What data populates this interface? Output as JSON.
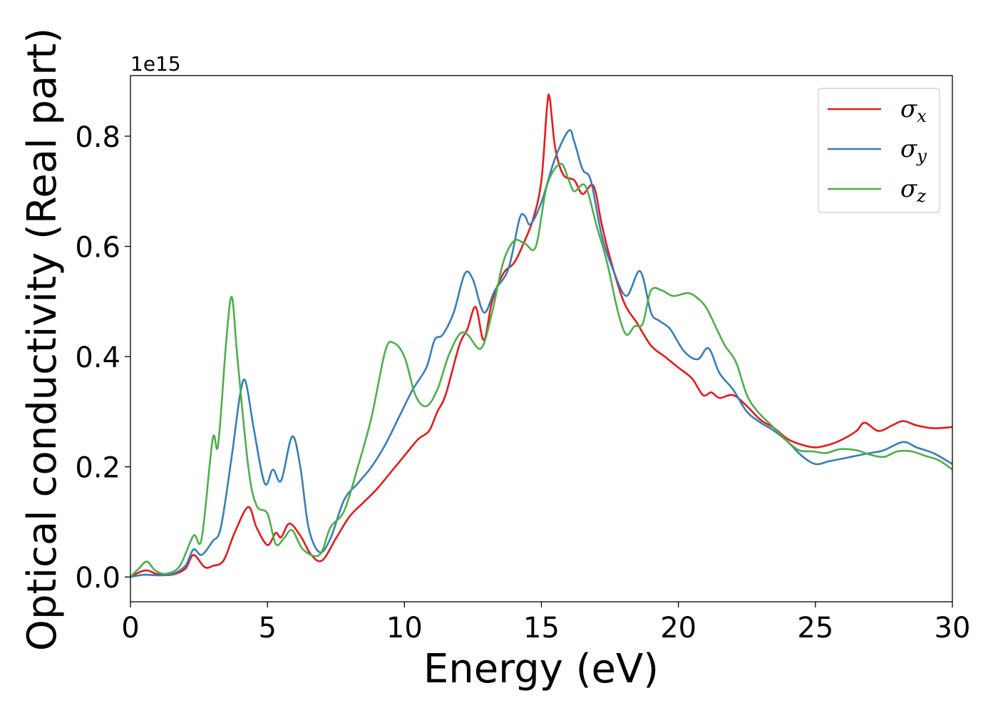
{
  "chart_data": {
    "type": "line",
    "xlabel": "Energy (eV)",
    "ylabel": "Optical conductivity (Real part)",
    "y_offset_label": "1e15",
    "y_scale": 1000000000000000.0,
    "xlim": [
      0,
      30
    ],
    "ylim": [
      -0.045,
      0.91
    ],
    "x_ticks": [
      0,
      5,
      10,
      15,
      20,
      25,
      30
    ],
    "x_tick_labels": [
      "0",
      "5",
      "10",
      "15",
      "20",
      "25",
      "30"
    ],
    "y_ticks": [
      0.0,
      0.2,
      0.4,
      0.6,
      0.8
    ],
    "y_tick_labels": [
      "0.0",
      "0.2",
      "0.4",
      "0.6",
      "0.8"
    ],
    "grid": false,
    "legend_position": "top-right",
    "series": [
      {
        "name": "σx",
        "symbol": "σ",
        "subscript": "x",
        "color": "#e41a1c",
        "points": [
          [
            0,
            0
          ],
          [
            0.3,
            0.008
          ],
          [
            0.6,
            0.012
          ],
          [
            1,
            0.005
          ],
          [
            1.5,
            0.004
          ],
          [
            2,
            0.015
          ],
          [
            2.3,
            0.04
          ],
          [
            2.7,
            0.018
          ],
          [
            3.0,
            0.02
          ],
          [
            3.4,
            0.03
          ],
          [
            3.8,
            0.08
          ],
          [
            4.3,
            0.127
          ],
          [
            4.6,
            0.09
          ],
          [
            5.0,
            0.058
          ],
          [
            5.3,
            0.08
          ],
          [
            5.5,
            0.072
          ],
          [
            5.8,
            0.097
          ],
          [
            6.2,
            0.075
          ],
          [
            6.6,
            0.04
          ],
          [
            7.0,
            0.03
          ],
          [
            7.5,
            0.07
          ],
          [
            8.0,
            0.11
          ],
          [
            8.5,
            0.135
          ],
          [
            9.0,
            0.16
          ],
          [
            9.5,
            0.19
          ],
          [
            10.0,
            0.22
          ],
          [
            10.5,
            0.25
          ],
          [
            10.9,
            0.265
          ],
          [
            11.2,
            0.3
          ],
          [
            11.5,
            0.33
          ],
          [
            12.0,
            0.42
          ],
          [
            12.3,
            0.45
          ],
          [
            12.6,
            0.49
          ],
          [
            12.9,
            0.43
          ],
          [
            13.2,
            0.5
          ],
          [
            13.6,
            0.55
          ],
          [
            14.0,
            0.57
          ],
          [
            14.3,
            0.6
          ],
          [
            14.7,
            0.65
          ],
          [
            15.0,
            0.72
          ],
          [
            15.2,
            0.85
          ],
          [
            15.3,
            0.87
          ],
          [
            15.5,
            0.78
          ],
          [
            15.8,
            0.73
          ],
          [
            16.2,
            0.72
          ],
          [
            16.5,
            0.695
          ],
          [
            16.9,
            0.71
          ],
          [
            17.2,
            0.64
          ],
          [
            17.5,
            0.58
          ],
          [
            18.0,
            0.5
          ],
          [
            18.5,
            0.46
          ],
          [
            19.0,
            0.42
          ],
          [
            19.5,
            0.4
          ],
          [
            20.0,
            0.38
          ],
          [
            20.5,
            0.36
          ],
          [
            20.9,
            0.33
          ],
          [
            21.2,
            0.335
          ],
          [
            21.5,
            0.325
          ],
          [
            22.0,
            0.33
          ],
          [
            22.5,
            0.31
          ],
          [
            23.0,
            0.285
          ],
          [
            23.5,
            0.27
          ],
          [
            24.0,
            0.25
          ],
          [
            24.5,
            0.24
          ],
          [
            25.0,
            0.235
          ],
          [
            25.5,
            0.24
          ],
          [
            26.0,
            0.25
          ],
          [
            26.5,
            0.265
          ],
          [
            26.8,
            0.28
          ],
          [
            27.3,
            0.265
          ],
          [
            27.8,
            0.275
          ],
          [
            28.2,
            0.283
          ],
          [
            28.7,
            0.275
          ],
          [
            29.3,
            0.27
          ],
          [
            30.0,
            0.272
          ]
        ]
      },
      {
        "name": "σy",
        "symbol": "σ",
        "subscript": "y",
        "color": "#377eb8",
        "points": [
          [
            0,
            0
          ],
          [
            0.5,
            0.004
          ],
          [
            1,
            0.003
          ],
          [
            1.5,
            0.005
          ],
          [
            2,
            0.02
          ],
          [
            2.3,
            0.05
          ],
          [
            2.6,
            0.04
          ],
          [
            3.0,
            0.065
          ],
          [
            3.3,
            0.09
          ],
          [
            3.7,
            0.22
          ],
          [
            4.0,
            0.33
          ],
          [
            4.2,
            0.355
          ],
          [
            4.5,
            0.27
          ],
          [
            4.9,
            0.17
          ],
          [
            5.2,
            0.195
          ],
          [
            5.5,
            0.175
          ],
          [
            5.9,
            0.255
          ],
          [
            6.2,
            0.2
          ],
          [
            6.5,
            0.09
          ],
          [
            6.9,
            0.045
          ],
          [
            7.3,
            0.07
          ],
          [
            7.8,
            0.14
          ],
          [
            8.3,
            0.17
          ],
          [
            8.8,
            0.2
          ],
          [
            9.3,
            0.24
          ],
          [
            9.8,
            0.29
          ],
          [
            10.3,
            0.34
          ],
          [
            10.8,
            0.38
          ],
          [
            11.1,
            0.43
          ],
          [
            11.4,
            0.44
          ],
          [
            11.8,
            0.48
          ],
          [
            12.2,
            0.55
          ],
          [
            12.5,
            0.54
          ],
          [
            12.9,
            0.48
          ],
          [
            13.3,
            0.52
          ],
          [
            13.8,
            0.56
          ],
          [
            14.2,
            0.65
          ],
          [
            14.4,
            0.655
          ],
          [
            14.6,
            0.64
          ],
          [
            15.0,
            0.68
          ],
          [
            15.5,
            0.76
          ],
          [
            16.0,
            0.81
          ],
          [
            16.2,
            0.79
          ],
          [
            16.5,
            0.74
          ],
          [
            16.8,
            0.72
          ],
          [
            17.2,
            0.62
          ],
          [
            17.6,
            0.56
          ],
          [
            18.1,
            0.51
          ],
          [
            18.6,
            0.555
          ],
          [
            19.0,
            0.48
          ],
          [
            19.3,
            0.465
          ],
          [
            19.7,
            0.45
          ],
          [
            20.2,
            0.41
          ],
          [
            20.7,
            0.395
          ],
          [
            21.1,
            0.415
          ],
          [
            21.5,
            0.37
          ],
          [
            22.0,
            0.34
          ],
          [
            22.5,
            0.3
          ],
          [
            23.0,
            0.28
          ],
          [
            23.5,
            0.265
          ],
          [
            24.0,
            0.245
          ],
          [
            24.5,
            0.22
          ],
          [
            25.0,
            0.205
          ],
          [
            25.5,
            0.21
          ],
          [
            26.0,
            0.215
          ],
          [
            26.5,
            0.22
          ],
          [
            27.0,
            0.225
          ],
          [
            27.5,
            0.23
          ],
          [
            28.2,
            0.245
          ],
          [
            28.7,
            0.235
          ],
          [
            29.3,
            0.225
          ],
          [
            30.0,
            0.205
          ]
        ]
      },
      {
        "name": "σz",
        "symbol": "σ",
        "subscript": "z",
        "color": "#4daf4a",
        "points": [
          [
            0,
            0
          ],
          [
            0.3,
            0.015
          ],
          [
            0.6,
            0.028
          ],
          [
            0.9,
            0.012
          ],
          [
            1.3,
            0.006
          ],
          [
            1.8,
            0.02
          ],
          [
            2.3,
            0.075
          ],
          [
            2.6,
            0.07
          ],
          [
            3.0,
            0.25
          ],
          [
            3.2,
            0.24
          ],
          [
            3.5,
            0.43
          ],
          [
            3.7,
            0.508
          ],
          [
            3.9,
            0.4
          ],
          [
            4.3,
            0.2
          ],
          [
            4.6,
            0.13
          ],
          [
            5.0,
            0.115
          ],
          [
            5.3,
            0.06
          ],
          [
            5.6,
            0.07
          ],
          [
            5.9,
            0.085
          ],
          [
            6.3,
            0.05
          ],
          [
            6.9,
            0.04
          ],
          [
            7.3,
            0.09
          ],
          [
            7.8,
            0.12
          ],
          [
            8.3,
            0.2
          ],
          [
            8.8,
            0.29
          ],
          [
            9.3,
            0.41
          ],
          [
            9.6,
            0.425
          ],
          [
            10.0,
            0.4
          ],
          [
            10.4,
            0.33
          ],
          [
            10.8,
            0.31
          ],
          [
            11.2,
            0.34
          ],
          [
            11.6,
            0.4
          ],
          [
            12.0,
            0.44
          ],
          [
            12.3,
            0.44
          ],
          [
            12.8,
            0.415
          ],
          [
            13.2,
            0.48
          ],
          [
            13.6,
            0.57
          ],
          [
            14.0,
            0.61
          ],
          [
            14.4,
            0.605
          ],
          [
            14.8,
            0.6
          ],
          [
            15.2,
            0.71
          ],
          [
            15.7,
            0.75
          ],
          [
            16.0,
            0.72
          ],
          [
            16.2,
            0.7
          ],
          [
            16.6,
            0.71
          ],
          [
            17.0,
            0.64
          ],
          [
            17.4,
            0.57
          ],
          [
            17.8,
            0.48
          ],
          [
            18.1,
            0.44
          ],
          [
            18.4,
            0.455
          ],
          [
            18.7,
            0.46
          ],
          [
            19.0,
            0.52
          ],
          [
            19.4,
            0.52
          ],
          [
            19.8,
            0.51
          ],
          [
            20.3,
            0.515
          ],
          [
            20.6,
            0.51
          ],
          [
            21.0,
            0.49
          ],
          [
            21.4,
            0.45
          ],
          [
            21.7,
            0.42
          ],
          [
            22.1,
            0.39
          ],
          [
            22.5,
            0.33
          ],
          [
            22.9,
            0.3
          ],
          [
            23.4,
            0.275
          ],
          [
            23.9,
            0.25
          ],
          [
            24.4,
            0.23
          ],
          [
            24.9,
            0.228
          ],
          [
            25.4,
            0.225
          ],
          [
            25.9,
            0.232
          ],
          [
            26.5,
            0.23
          ],
          [
            27.0,
            0.222
          ],
          [
            27.5,
            0.218
          ],
          [
            28.0,
            0.228
          ],
          [
            28.5,
            0.228
          ],
          [
            29.0,
            0.22
          ],
          [
            29.5,
            0.212
          ],
          [
            30.0,
            0.195
          ]
        ]
      }
    ]
  }
}
